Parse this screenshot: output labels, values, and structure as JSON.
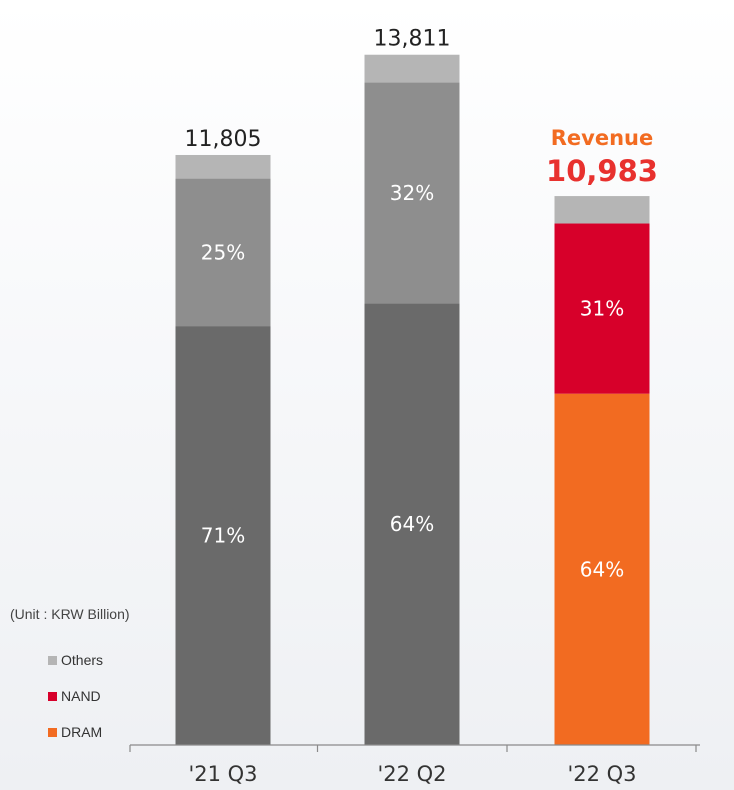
{
  "chart_data": {
    "type": "bar",
    "stacked": true,
    "categories": [
      "'21 Q3",
      "'22 Q2",
      "'22 Q3"
    ],
    "totals": [
      "11,805",
      "13,811",
      "10,983"
    ],
    "total_values": [
      11805,
      13811,
      10983
    ],
    "highlight": {
      "category_index": 2,
      "title": "Revenue",
      "color": "#f26b21"
    },
    "unit_note": "(Unit : KRW Billion)",
    "series": [
      {
        "name": "DRAM",
        "shares": [
          0.71,
          0.64,
          0.64
        ],
        "labels": [
          "71%",
          "64%",
          "64%"
        ]
      },
      {
        "name": "NAND",
        "shares": [
          0.25,
          0.32,
          0.31
        ],
        "labels": [
          "25%",
          "32%",
          "31%"
        ]
      },
      {
        "name": "Others",
        "shares": [
          0.04,
          0.04,
          0.05
        ],
        "labels": [
          "",
          "",
          ""
        ]
      }
    ],
    "colors": {
      "default": {
        "DRAM": "#6a6a6a",
        "NAND": "#8e8e8e",
        "Others": "#b5b5b5"
      },
      "highlight": {
        "DRAM": "#f26b21",
        "NAND": "#d7002a",
        "Others": "#b5b5b5"
      },
      "highlight_title": "#f26b21",
      "highlight_value": "#e8312e"
    },
    "legend": [
      {
        "name": "Others",
        "color": "#b5b5b5"
      },
      {
        "name": "NAND",
        "color": "#d7002a"
      },
      {
        "name": "DRAM",
        "color": "#f26b21"
      }
    ],
    "legend_position": "bottom-left",
    "grid": false
  }
}
